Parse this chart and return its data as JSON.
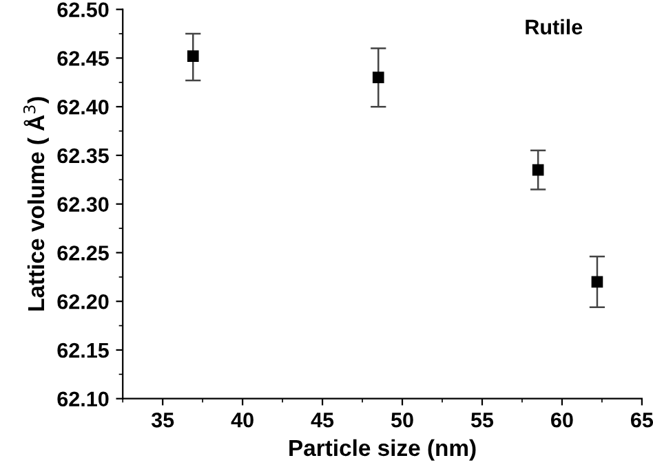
{
  "chart_data": {
    "type": "scatter",
    "xlabel": "Particle size (nm)",
    "ylabel": "Lattice volume ( Å$^{3}$)",
    "annotations": [
      "Rutile"
    ],
    "x": [
      36.9,
      48.5,
      58.5,
      62.2
    ],
    "series": [
      {
        "color": "#000000",
        "values": [
          62.452,
          62.43,
          62.335,
          62.22
        ],
        "errors": [
          [
            62.427,
            62.475
          ],
          [
            62.4,
            62.46
          ],
          [
            62.315,
            62.355
          ],
          [
            62.194,
            62.246
          ]
        ]
      }
    ],
    "marker": "square",
    "xlim": [
      32.5,
      65
    ],
    "ylim": [
      62.1,
      62.5
    ],
    "xticks": [
      35,
      40,
      45,
      50,
      55,
      60,
      65
    ],
    "yticks": [
      {
        "value": 62.1,
        "label": "62.10"
      },
      {
        "value": 62.15,
        "label": "62.15"
      },
      {
        "value": 62.2,
        "label": "62.20"
      },
      {
        "value": 62.25,
        "label": "62.25"
      },
      {
        "value": 62.3,
        "label": "62.30"
      },
      {
        "value": 62.35,
        "label": "62.35"
      },
      {
        "value": 62.4,
        "label": "62.40"
      },
      {
        "value": 62.45,
        "label": "62.45"
      },
      {
        "value": 62.5,
        "label": "62.50"
      }
    ]
  }
}
